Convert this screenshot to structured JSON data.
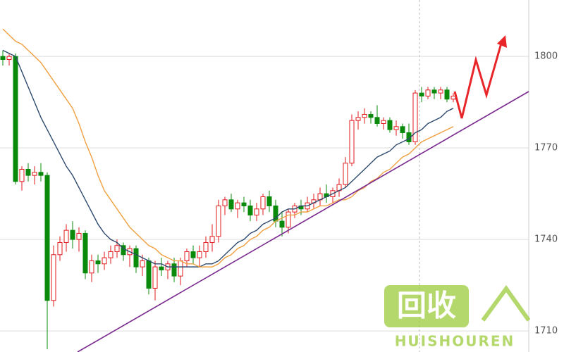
{
  "chart_data": {
    "type": "candlestick",
    "ylim": [
      1703.1,
      1818.5
    ],
    "yticks": [
      1710,
      1740,
      1770,
      1800
    ],
    "grid": true,
    "up_color": "#e3191c",
    "down_color": "#0a8a0a",
    "open": [
      1800,
      1799,
      1800,
      1759,
      1763,
      1761,
      1762,
      1761,
      1720,
      1735,
      1739,
      1743,
      1740,
      1742,
      1729,
      1733,
      1732,
      1734,
      1736,
      1738,
      1735,
      1737,
      1731,
      1733,
      1724,
      1731,
      1730,
      1732,
      1728,
      1733,
      1736,
      1734,
      1736,
      1739,
      1741,
      1751,
      1753,
      1750,
      1752,
      1751,
      1748,
      1750,
      1754,
      1751,
      1746,
      1744,
      1749,
      1751,
      1750,
      1752,
      1753,
      1755,
      1754,
      1756,
      1758,
      1765,
      1779,
      1780,
      1781,
      1780,
      1778,
      1779,
      1776,
      1777,
      1775,
      1772,
      1788,
      1787,
      1789,
      1788,
      1789,
      1786
    ],
    "high": [
      1802,
      1801,
      1801,
      1764,
      1765,
      1764,
      1765,
      1762,
      1738,
      1741,
      1745,
      1746,
      1744,
      1743,
      1735,
      1735,
      1736,
      1738,
      1740,
      1739,
      1738,
      1738,
      1735,
      1734,
      1733,
      1734,
      1733,
      1734,
      1734,
      1737,
      1738,
      1738,
      1741,
      1745,
      1753,
      1754,
      1755,
      1753,
      1754,
      1753,
      1752,
      1755,
      1756,
      1753,
      1749,
      1750,
      1752,
      1753,
      1754,
      1755,
      1757,
      1758,
      1757,
      1760,
      1767,
      1781,
      1782,
      1783,
      1782,
      1784,
      1780,
      1780,
      1779,
      1778,
      1778,
      1789,
      1790,
      1790,
      1790,
      1790,
      1790,
      1788
    ],
    "low": [
      1797,
      1797,
      1758,
      1756,
      1759,
      1758,
      1759,
      1704,
      1718,
      1733,
      1736,
      1737,
      1736,
      1727,
      1726,
      1729,
      1730,
      1732,
      1734,
      1733,
      1731,
      1729,
      1728,
      1722,
      1720,
      1728,
      1727,
      1726,
      1725,
      1731,
      1732,
      1731,
      1734,
      1736,
      1739,
      1748,
      1749,
      1747,
      1749,
      1746,
      1746,
      1748,
      1749,
      1744,
      1741,
      1742,
      1747,
      1748,
      1749,
      1750,
      1751,
      1752,
      1752,
      1754,
      1757,
      1764,
      1776,
      1778,
      1778,
      1777,
      1776,
      1775,
      1774,
      1773,
      1771,
      1771,
      1785,
      1786,
      1786,
      1786,
      1785,
      1785
    ],
    "close": [
      1799,
      1800,
      1759,
      1763,
      1761,
      1762,
      1761,
      1720,
      1735,
      1739,
      1743,
      1740,
      1742,
      1729,
      1733,
      1732,
      1734,
      1736,
      1738,
      1735,
      1737,
      1731,
      1733,
      1724,
      1731,
      1730,
      1732,
      1728,
      1733,
      1736,
      1734,
      1736,
      1739,
      1741,
      1751,
      1753,
      1750,
      1752,
      1751,
      1748,
      1750,
      1754,
      1751,
      1746,
      1744,
      1749,
      1751,
      1750,
      1752,
      1753,
      1755,
      1754,
      1756,
      1758,
      1765,
      1779,
      1780,
      1781,
      1780,
      1778,
      1779,
      1776,
      1777,
      1775,
      1772,
      1788,
      1787,
      1789,
      1788,
      1789,
      1786,
      1787
    ],
    "moving_averages": [
      {
        "color": "#2e4a6e",
        "values": [
          1802,
          1801,
          1800,
          1795,
          1790,
          1785,
          1780,
          1776,
          1772,
          1768,
          1764,
          1761,
          1757,
          1753,
          1749,
          1745,
          1742,
          1740,
          1739,
          1737,
          1736,
          1735,
          1734,
          1733,
          1732,
          1732,
          1731,
          1731,
          1731,
          1731,
          1731,
          1731,
          1732,
          1732,
          1733,
          1735,
          1737,
          1739,
          1740,
          1742,
          1743,
          1745,
          1746,
          1747,
          1749,
          1750,
          1750,
          1751,
          1751,
          1752,
          1753,
          1754,
          1755,
          1756,
          1757,
          1759,
          1761,
          1763,
          1765,
          1767,
          1768,
          1769,
          1771,
          1772,
          1773,
          1775,
          1776,
          1778,
          1779,
          1780,
          1782,
          1783
        ]
      },
      {
        "color": "#f0a040",
        "values": [
          1809,
          1807,
          1805,
          1804,
          1802,
          1800,
          1798,
          1795,
          1792,
          1789,
          1786,
          1783,
          1778,
          1772,
          1767,
          1761,
          1756,
          1753,
          1750,
          1747,
          1744,
          1742,
          1740,
          1738,
          1737,
          1735,
          1734,
          1733,
          1733,
          1732,
          1732,
          1731,
          1731,
          1731,
          1732,
          1734,
          1735,
          1737,
          1738,
          1740,
          1741,
          1743,
          1744,
          1746,
          1747,
          1748,
          1748,
          1749,
          1749,
          1750,
          1751,
          1751,
          1752,
          1753,
          1753,
          1754,
          1756,
          1757,
          1759,
          1760,
          1762,
          1763,
          1765,
          1767,
          1768,
          1770,
          1772,
          1773,
          1774,
          1775,
          1776,
          1777
        ]
      }
    ]
  },
  "watermark": {
    "logo": "回收",
    "brand": "HUISHOUREN"
  }
}
